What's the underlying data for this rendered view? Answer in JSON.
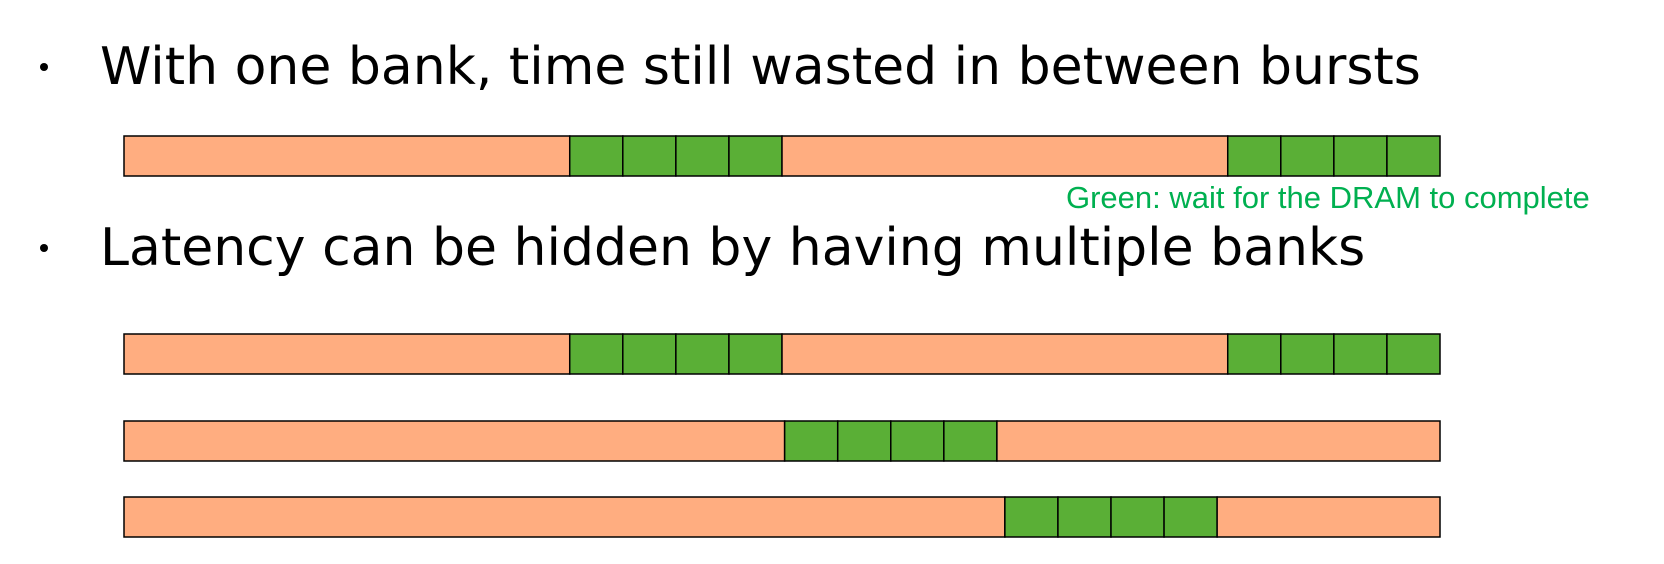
{
  "bullets": [
    {
      "text": "With one bank, time still wasted in between bursts"
    },
    {
      "text": "Latency can be hidden by having multiple banks"
    }
  ],
  "legend_note": "Green: wait for the DRAM to complete",
  "colors": {
    "idle": "#ffad80",
    "wait": "#5aaf36",
    "note": "#00b050",
    "border": "#000000"
  },
  "timelines": [
    {
      "id": "single-bank",
      "segments": [
        {
          "type": "idle",
          "units": 8.4
        },
        {
          "type": "wait",
          "units": 1
        },
        {
          "type": "wait",
          "units": 1
        },
        {
          "type": "wait",
          "units": 1
        },
        {
          "type": "wait",
          "units": 1
        },
        {
          "type": "idle",
          "units": 8.4
        },
        {
          "type": "wait",
          "units": 1
        },
        {
          "type": "wait",
          "units": 1
        },
        {
          "type": "wait",
          "units": 1
        },
        {
          "type": "wait",
          "units": 1
        }
      ]
    },
    {
      "id": "bank-1",
      "segments": [
        {
          "type": "idle",
          "units": 8.4
        },
        {
          "type": "wait",
          "units": 1
        },
        {
          "type": "wait",
          "units": 1
        },
        {
          "type": "wait",
          "units": 1
        },
        {
          "type": "wait",
          "units": 1
        },
        {
          "type": "idle",
          "units": 8.4
        },
        {
          "type": "wait",
          "units": 1
        },
        {
          "type": "wait",
          "units": 1
        },
        {
          "type": "wait",
          "units": 1
        },
        {
          "type": "wait",
          "units": 1
        }
      ]
    },
    {
      "id": "bank-2",
      "segments": [
        {
          "type": "idle",
          "units": 12.45
        },
        {
          "type": "wait",
          "units": 1
        },
        {
          "type": "wait",
          "units": 1
        },
        {
          "type": "wait",
          "units": 1
        },
        {
          "type": "wait",
          "units": 1
        },
        {
          "type": "idle",
          "units": 8.35
        }
      ]
    },
    {
      "id": "bank-3",
      "segments": [
        {
          "type": "idle",
          "units": 16.6
        },
        {
          "type": "wait",
          "units": 1
        },
        {
          "type": "wait",
          "units": 1
        },
        {
          "type": "wait",
          "units": 1
        },
        {
          "type": "wait",
          "units": 1
        },
        {
          "type": "idle",
          "units": 4.2
        }
      ]
    }
  ]
}
